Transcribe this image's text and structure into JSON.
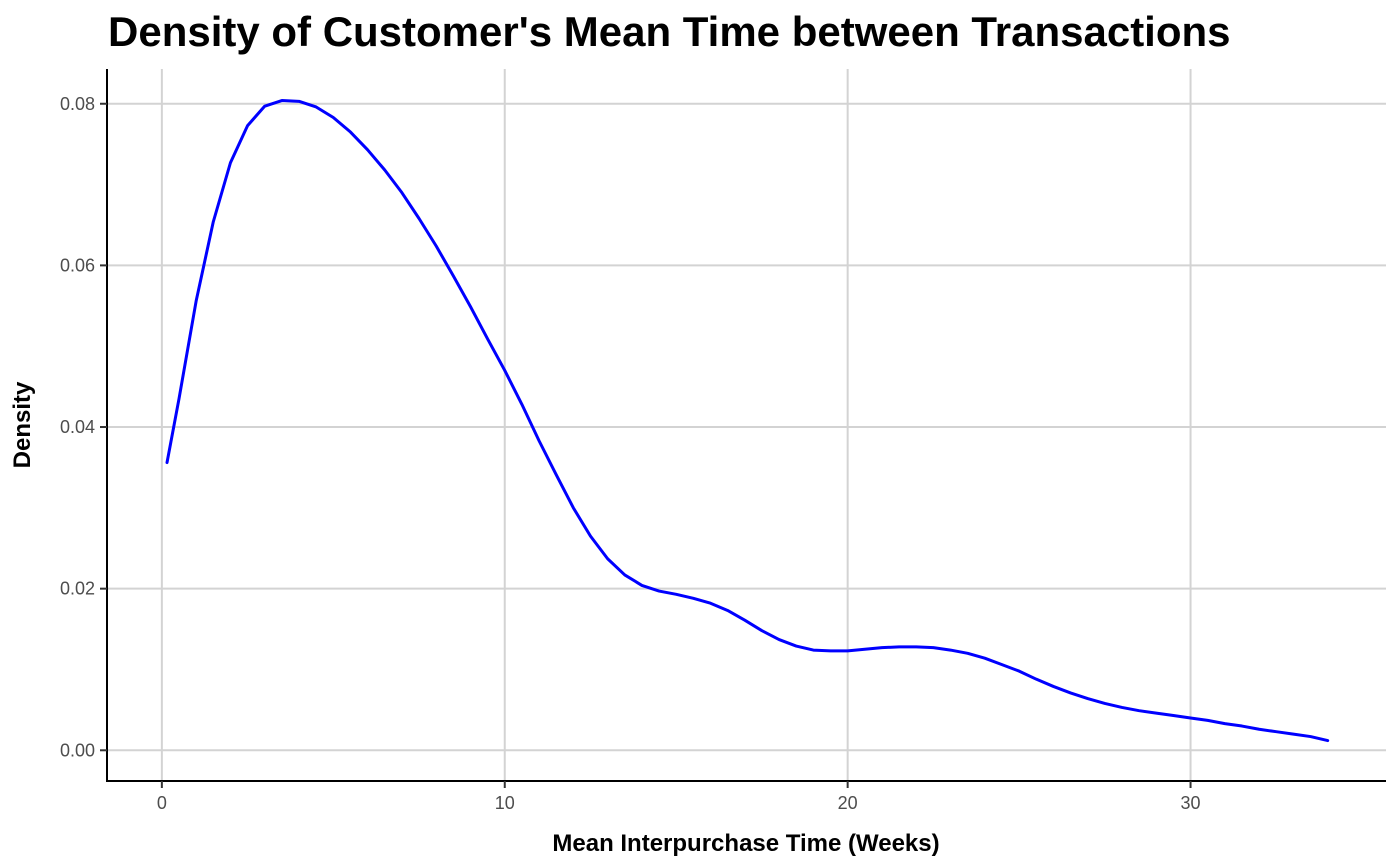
{
  "chart_data": {
    "type": "line",
    "title": "Density of Customer's Mean Time between Transactions",
    "xlabel": "Mean Interpurchase Time (Weeks)",
    "ylabel": "Density",
    "xlim": [
      -1.6,
      35.7
    ],
    "ylim": [
      -0.0038,
      0.0843
    ],
    "x_ticks": [
      0,
      10,
      20,
      30
    ],
    "x_tick_labels": [
      "0",
      "10",
      "20",
      "30"
    ],
    "y_ticks": [
      0.0,
      0.02,
      0.04,
      0.06,
      0.08
    ],
    "y_tick_labels": [
      "0.00",
      "0.02",
      "0.04",
      "0.06",
      "0.08"
    ],
    "grid": true,
    "series": [
      {
        "color": "#0000ff",
        "x": [
          0.15,
          0.5,
          1.0,
          1.5,
          2.0,
          2.5,
          3.0,
          3.5,
          4.0,
          4.5,
          5.0,
          5.5,
          6.0,
          6.5,
          7.0,
          7.5,
          8.0,
          8.5,
          9.0,
          9.5,
          10.0,
          10.5,
          11.0,
          11.5,
          12.0,
          12.5,
          13.0,
          13.5,
          14.0,
          14.5,
          15.0,
          15.5,
          16.0,
          16.5,
          17.0,
          17.5,
          18.0,
          18.5,
          19.0,
          19.5,
          20.0,
          20.5,
          21.0,
          21.5,
          22.0,
          22.5,
          23.0,
          23.5,
          24.0,
          24.5,
          25.0,
          25.5,
          26.0,
          26.5,
          27.0,
          27.5,
          28.0,
          28.5,
          29.0,
          29.5,
          30.0,
          30.5,
          31.0,
          31.5,
          32.0,
          32.5,
          33.0,
          33.5,
          34.0
        ],
        "y": [
          0.0356,
          0.0435,
          0.0556,
          0.0654,
          0.0727,
          0.0773,
          0.0797,
          0.0804,
          0.0803,
          0.0796,
          0.0783,
          0.0765,
          0.0743,
          0.0718,
          0.069,
          0.0658,
          0.0624,
          0.0587,
          0.0549,
          0.0509,
          0.047,
          0.0428,
          0.0383,
          0.0341,
          0.03,
          0.0265,
          0.0237,
          0.0217,
          0.0204,
          0.0197,
          0.0193,
          0.0188,
          0.0182,
          0.0173,
          0.0161,
          0.0148,
          0.0137,
          0.0129,
          0.0124,
          0.0123,
          0.0123,
          0.0125,
          0.0127,
          0.0128,
          0.0128,
          0.0127,
          0.0124,
          0.012,
          0.0114,
          0.0106,
          0.0098,
          0.0088,
          0.0079,
          0.0071,
          0.0064,
          0.0058,
          0.0053,
          0.0049,
          0.0046,
          0.0043,
          0.004,
          0.0037,
          0.0033,
          0.003,
          0.0026,
          0.0023,
          0.002,
          0.0017,
          0.0012
        ]
      }
    ]
  }
}
